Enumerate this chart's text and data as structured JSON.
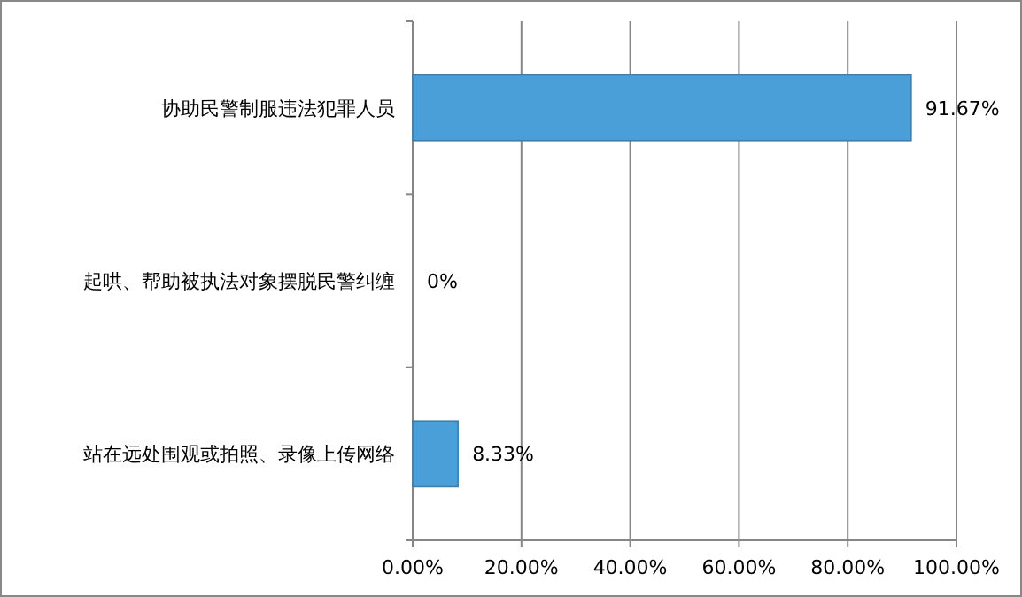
{
  "chart_data": {
    "type": "bar",
    "orientation": "horizontal",
    "categories": [
      "协助民警制服违法犯罪人员",
      "起哄、帮助被执法对象摆脱民警纠缠",
      "站在远处围观或拍照、录像上传网络"
    ],
    "values": [
      91.67,
      0,
      8.33
    ],
    "value_labels": [
      "91.67%",
      "0%",
      "8.33%"
    ],
    "color": "#4a9fd8",
    "xlim": [
      0,
      100
    ],
    "xticks": [
      {
        "value": 0,
        "label": "0.00%"
      },
      {
        "value": 20,
        "label": "20.00%"
      },
      {
        "value": 40,
        "label": "40.00%"
      },
      {
        "value": 60,
        "label": "60.00%"
      },
      {
        "value": 80,
        "label": "80.00%"
      },
      {
        "value": 100,
        "label": "100.00%"
      }
    ],
    "grid": "x"
  }
}
